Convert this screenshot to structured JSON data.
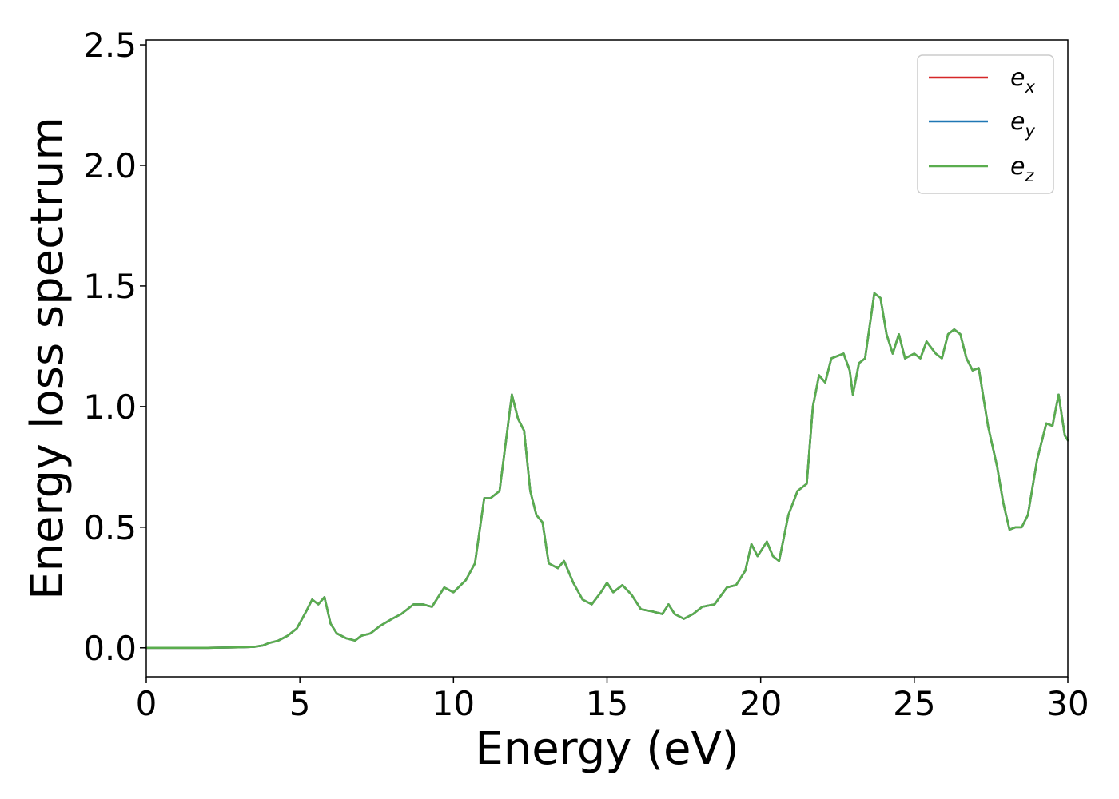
{
  "chart_data": {
    "type": "line",
    "title": "",
    "xlabel": "Energy (eV)",
    "ylabel": "Energy loss spectrum",
    "xlim": [
      0,
      30
    ],
    "ylim": [
      -0.12,
      2.52
    ],
    "xticks": [
      0,
      5,
      10,
      15,
      20,
      25,
      30
    ],
    "xtick_labels": [
      "0",
      "5",
      "10",
      "15",
      "20",
      "25",
      "30"
    ],
    "yticks": [
      0.0,
      0.5,
      1.0,
      1.5,
      2.0,
      2.5
    ],
    "ytick_labels": [
      "0.0",
      "0.5",
      "1.0",
      "1.5",
      "2.0",
      "2.5"
    ],
    "grid": false,
    "legend_position": "top-right",
    "x": [
      0,
      1,
      2,
      3,
      3.5,
      3.8,
      4.0,
      4.3,
      4.6,
      4.9,
      5.2,
      5.4,
      5.6,
      5.8,
      6.0,
      6.2,
      6.5,
      6.8,
      7.0,
      7.3,
      7.6,
      8.0,
      8.3,
      8.7,
      9.0,
      9.3,
      9.7,
      10.0,
      10.4,
      10.7,
      11.0,
      11.2,
      11.5,
      11.7,
      11.9,
      12.1,
      12.3,
      12.5,
      12.7,
      12.9,
      13.1,
      13.4,
      13.6,
      13.9,
      14.2,
      14.5,
      14.8,
      15.0,
      15.2,
      15.5,
      15.8,
      16.1,
      16.5,
      16.8,
      17.0,
      17.2,
      17.5,
      17.8,
      18.1,
      18.5,
      18.9,
      19.2,
      19.5,
      19.7,
      19.9,
      20.2,
      20.4,
      20.6,
      20.9,
      21.2,
      21.5,
      21.7,
      21.9,
      22.1,
      22.3,
      22.5,
      22.7,
      22.9,
      23.0,
      23.2,
      23.4,
      23.7,
      23.9,
      24.1,
      24.3,
      24.5,
      24.7,
      25.0,
      25.2,
      25.4,
      25.7,
      25.9,
      26.1,
      26.3,
      26.5,
      26.7,
      26.9,
      27.1,
      27.4,
      27.7,
      27.9,
      28.1,
      28.3,
      28.5,
      28.7,
      29.0,
      29.3,
      29.5,
      29.7,
      29.9,
      30.0
    ],
    "series": [
      {
        "name": "e_x",
        "color": "#d62728",
        "values": [
          0.0,
          0.0,
          0.0,
          0.002,
          0.004,
          0.01,
          0.02,
          0.03,
          0.05,
          0.08,
          0.15,
          0.2,
          0.18,
          0.21,
          0.1,
          0.06,
          0.04,
          0.03,
          0.05,
          0.06,
          0.09,
          0.12,
          0.14,
          0.18,
          0.18,
          0.17,
          0.25,
          0.23,
          0.28,
          0.35,
          0.62,
          0.62,
          0.65,
          0.85,
          1.05,
          0.95,
          0.9,
          0.65,
          0.55,
          0.52,
          0.35,
          0.33,
          0.36,
          0.27,
          0.2,
          0.18,
          0.23,
          0.27,
          0.23,
          0.26,
          0.22,
          0.16,
          0.15,
          0.14,
          0.18,
          0.14,
          0.12,
          0.14,
          0.17,
          0.18,
          0.25,
          0.26,
          0.32,
          0.43,
          0.38,
          0.44,
          0.38,
          0.36,
          0.55,
          0.65,
          0.68,
          1.0,
          1.13,
          1.1,
          1.2,
          1.21,
          1.22,
          1.15,
          1.05,
          1.18,
          1.2,
          1.47,
          1.45,
          1.3,
          1.22,
          1.3,
          1.2,
          1.22,
          1.2,
          1.27,
          1.22,
          1.2,
          1.3,
          1.32,
          1.3,
          1.2,
          1.15,
          1.16,
          0.92,
          0.75,
          0.6,
          0.49,
          0.5,
          0.5,
          0.55,
          0.78,
          0.93,
          0.92,
          1.05,
          0.88,
          0.86
        ]
      },
      {
        "name": "e_y",
        "color": "#1f77b4",
        "values": [
          0.0,
          0.0,
          0.0,
          0.002,
          0.004,
          0.01,
          0.02,
          0.03,
          0.05,
          0.08,
          0.15,
          0.2,
          0.18,
          0.21,
          0.1,
          0.06,
          0.04,
          0.03,
          0.05,
          0.06,
          0.09,
          0.12,
          0.14,
          0.18,
          0.18,
          0.17,
          0.25,
          0.23,
          0.28,
          0.35,
          0.62,
          0.62,
          0.65,
          0.85,
          1.05,
          0.95,
          0.9,
          0.65,
          0.55,
          0.52,
          0.35,
          0.33,
          0.36,
          0.27,
          0.2,
          0.18,
          0.23,
          0.27,
          0.23,
          0.26,
          0.22,
          0.16,
          0.15,
          0.14,
          0.18,
          0.14,
          0.12,
          0.14,
          0.17,
          0.18,
          0.25,
          0.26,
          0.32,
          0.43,
          0.38,
          0.44,
          0.38,
          0.36,
          0.55,
          0.65,
          0.68,
          1.0,
          1.13,
          1.1,
          1.2,
          1.21,
          1.22,
          1.15,
          1.05,
          1.18,
          1.2,
          1.47,
          1.45,
          1.3,
          1.22,
          1.3,
          1.2,
          1.22,
          1.2,
          1.27,
          1.22,
          1.2,
          1.3,
          1.32,
          1.3,
          1.2,
          1.15,
          1.16,
          0.92,
          0.75,
          0.6,
          0.49,
          0.5,
          0.5,
          0.55,
          0.78,
          0.93,
          0.92,
          1.05,
          0.88,
          0.86
        ]
      },
      {
        "name": "e_z",
        "color": "#5aad4e",
        "values": [
          0.0,
          0.0,
          0.0,
          0.002,
          0.004,
          0.01,
          0.02,
          0.03,
          0.05,
          0.08,
          0.15,
          0.2,
          0.18,
          0.21,
          0.1,
          0.06,
          0.04,
          0.03,
          0.05,
          0.06,
          0.09,
          0.12,
          0.14,
          0.18,
          0.18,
          0.17,
          0.25,
          0.23,
          0.28,
          0.35,
          0.62,
          0.62,
          0.65,
          0.85,
          1.05,
          0.95,
          0.9,
          0.65,
          0.55,
          0.52,
          0.35,
          0.33,
          0.36,
          0.27,
          0.2,
          0.18,
          0.23,
          0.27,
          0.23,
          0.26,
          0.22,
          0.16,
          0.15,
          0.14,
          0.18,
          0.14,
          0.12,
          0.14,
          0.17,
          0.18,
          0.25,
          0.26,
          0.32,
          0.43,
          0.38,
          0.44,
          0.38,
          0.36,
          0.55,
          0.65,
          0.68,
          1.0,
          1.13,
          1.1,
          1.2,
          1.21,
          1.22,
          1.15,
          1.05,
          1.18,
          1.2,
          1.47,
          1.45,
          1.3,
          1.22,
          1.3,
          1.2,
          1.22,
          1.2,
          1.27,
          1.22,
          1.2,
          1.3,
          1.32,
          1.3,
          1.2,
          1.15,
          1.16,
          0.92,
          0.75,
          0.6,
          0.49,
          0.5,
          0.5,
          0.55,
          0.78,
          0.93,
          0.92,
          1.05,
          0.88,
          0.86
        ]
      }
    ],
    "legend": [
      {
        "base": "e",
        "sub": "x"
      },
      {
        "base": "e",
        "sub": "y"
      },
      {
        "base": "e",
        "sub": "z"
      }
    ]
  }
}
